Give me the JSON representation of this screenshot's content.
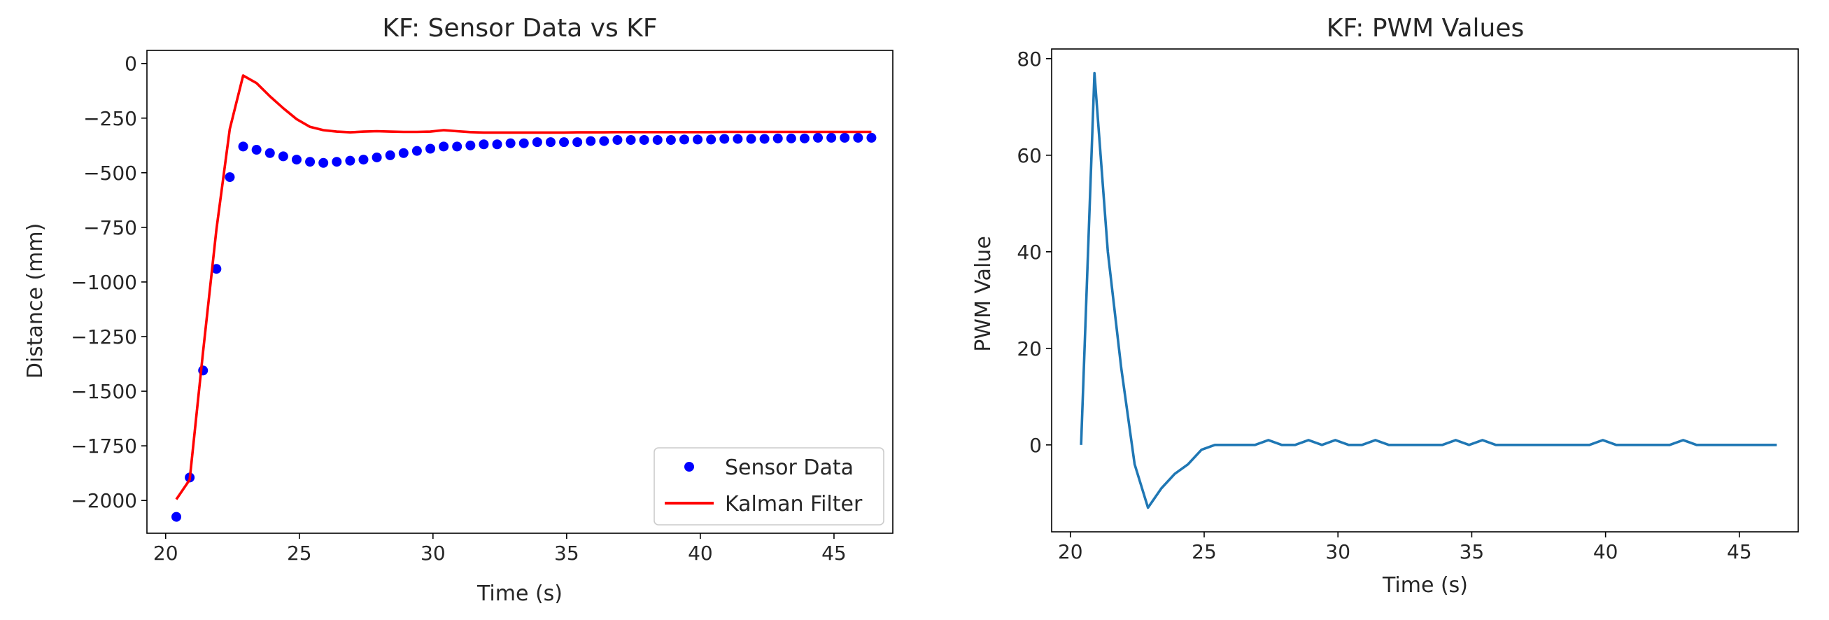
{
  "chart_data": [
    {
      "type": "line",
      "title": "KF: Sensor Data vs KF",
      "xlabel": "Time (s)",
      "ylabel": "Distance (mm)",
      "xlim": [
        19.3,
        47.2
      ],
      "ylim": [
        -2150,
        60
      ],
      "xticks": [
        20,
        25,
        30,
        35,
        40,
        45
      ],
      "yticks": [
        0,
        -250,
        -500,
        -750,
        -1000,
        -1250,
        -1500,
        -1750,
        -2000
      ],
      "grid": false,
      "legend": "bottom-right",
      "series": [
        {
          "name": "Sensor Data",
          "style": "markers",
          "color": "#0000ff",
          "x": [
            20.4,
            20.9,
            21.4,
            21.9,
            22.4,
            22.9,
            23.4,
            23.9,
            24.4,
            24.9,
            25.4,
            25.9,
            26.4,
            26.9,
            27.4,
            27.9,
            28.4,
            28.9,
            29.4,
            29.9,
            30.4,
            30.9,
            31.4,
            31.9,
            32.4,
            32.9,
            33.4,
            33.9,
            34.4,
            34.9,
            35.4,
            35.9,
            36.4,
            36.9,
            37.4,
            37.9,
            38.4,
            38.9,
            39.4,
            39.9,
            40.4,
            40.9,
            41.4,
            41.9,
            42.4,
            42.9,
            43.4,
            43.9,
            44.4,
            44.9,
            45.4,
            45.9,
            46.4
          ],
          "y": [
            -2075,
            -1895,
            -1405,
            -940,
            -520,
            -380,
            -395,
            -410,
            -425,
            -440,
            -450,
            -455,
            -450,
            -445,
            -440,
            -430,
            -420,
            -410,
            -400,
            -390,
            -380,
            -380,
            -375,
            -370,
            -370,
            -365,
            -365,
            -360,
            -360,
            -360,
            -360,
            -355,
            -355,
            -350,
            -350,
            -350,
            -350,
            -350,
            -348,
            -348,
            -348,
            -345,
            -345,
            -345,
            -345,
            -343,
            -343,
            -343,
            -340,
            -340,
            -340,
            -340,
            -340
          ]
        },
        {
          "name": "Kalman Filter",
          "style": "line",
          "color": "#ff0000",
          "x": [
            20.4,
            20.9,
            21.4,
            21.9,
            22.4,
            22.9,
            23.4,
            23.9,
            24.4,
            24.9,
            25.4,
            25.9,
            26.4,
            26.9,
            27.4,
            27.9,
            28.4,
            28.9,
            29.4,
            29.9,
            30.4,
            30.9,
            31.4,
            31.9,
            32.4,
            32.9,
            33.4,
            33.9,
            34.4,
            34.9,
            35.4,
            35.9,
            36.4,
            36.9,
            37.4,
            37.9,
            38.4,
            38.9,
            39.4,
            39.9,
            40.4,
            40.9,
            41.4,
            41.9,
            42.4,
            42.9,
            43.4,
            43.9,
            44.4,
            44.9,
            45.4,
            45.9,
            46.4
          ],
          "y": [
            -1995,
            -1905,
            -1320,
            -760,
            -300,
            -55,
            -90,
            -150,
            -205,
            -255,
            -290,
            -305,
            -312,
            -315,
            -312,
            -310,
            -312,
            -313,
            -313,
            -312,
            -305,
            -310,
            -314,
            -316,
            -316,
            -316,
            -316,
            -316,
            -316,
            -316,
            -315,
            -315,
            -315,
            -314,
            -314,
            -314,
            -314,
            -314,
            -314,
            -314,
            -314,
            -313,
            -313,
            -313,
            -313,
            -313,
            -313,
            -313,
            -313,
            -313,
            -313,
            -313,
            -313
          ]
        }
      ]
    },
    {
      "type": "line",
      "title": "KF: PWM Values",
      "xlabel": "Time (s)",
      "ylabel": "PWM Value",
      "xlim": [
        19.3,
        47.2
      ],
      "ylim": [
        -18,
        82
      ],
      "xticks": [
        20,
        25,
        30,
        35,
        40,
        45
      ],
      "yticks": [
        0,
        20,
        40,
        60,
        80
      ],
      "grid": false,
      "series": [
        {
          "style": "line",
          "color": "#1f77b4",
          "x": [
            20.4,
            20.9,
            21.4,
            21.9,
            22.4,
            22.9,
            23.4,
            23.9,
            24.4,
            24.9,
            25.4,
            25.9,
            26.4,
            26.9,
            27.4,
            27.9,
            28.4,
            28.9,
            29.4,
            29.9,
            30.4,
            30.9,
            31.4,
            31.9,
            32.4,
            32.9,
            33.4,
            33.9,
            34.4,
            34.9,
            35.4,
            35.9,
            36.4,
            36.9,
            37.4,
            37.9,
            38.4,
            38.9,
            39.4,
            39.9,
            40.4,
            40.9,
            41.4,
            41.9,
            42.4,
            42.9,
            43.4,
            43.9,
            44.4,
            44.9,
            45.4,
            45.9,
            46.4
          ],
          "y": [
            0,
            77,
            40,
            16,
            -4,
            -13,
            -9,
            -6,
            -4,
            -1,
            0,
            0,
            0,
            0,
            1,
            0,
            0,
            1,
            0,
            1,
            0,
            0,
            1,
            0,
            0,
            0,
            0,
            0,
            1,
            0,
            1,
            0,
            0,
            0,
            0,
            0,
            0,
            0,
            0,
            1,
            0,
            0,
            0,
            0,
            0,
            1,
            0,
            0,
            0,
            0,
            0,
            0,
            0
          ]
        }
      ]
    }
  ]
}
